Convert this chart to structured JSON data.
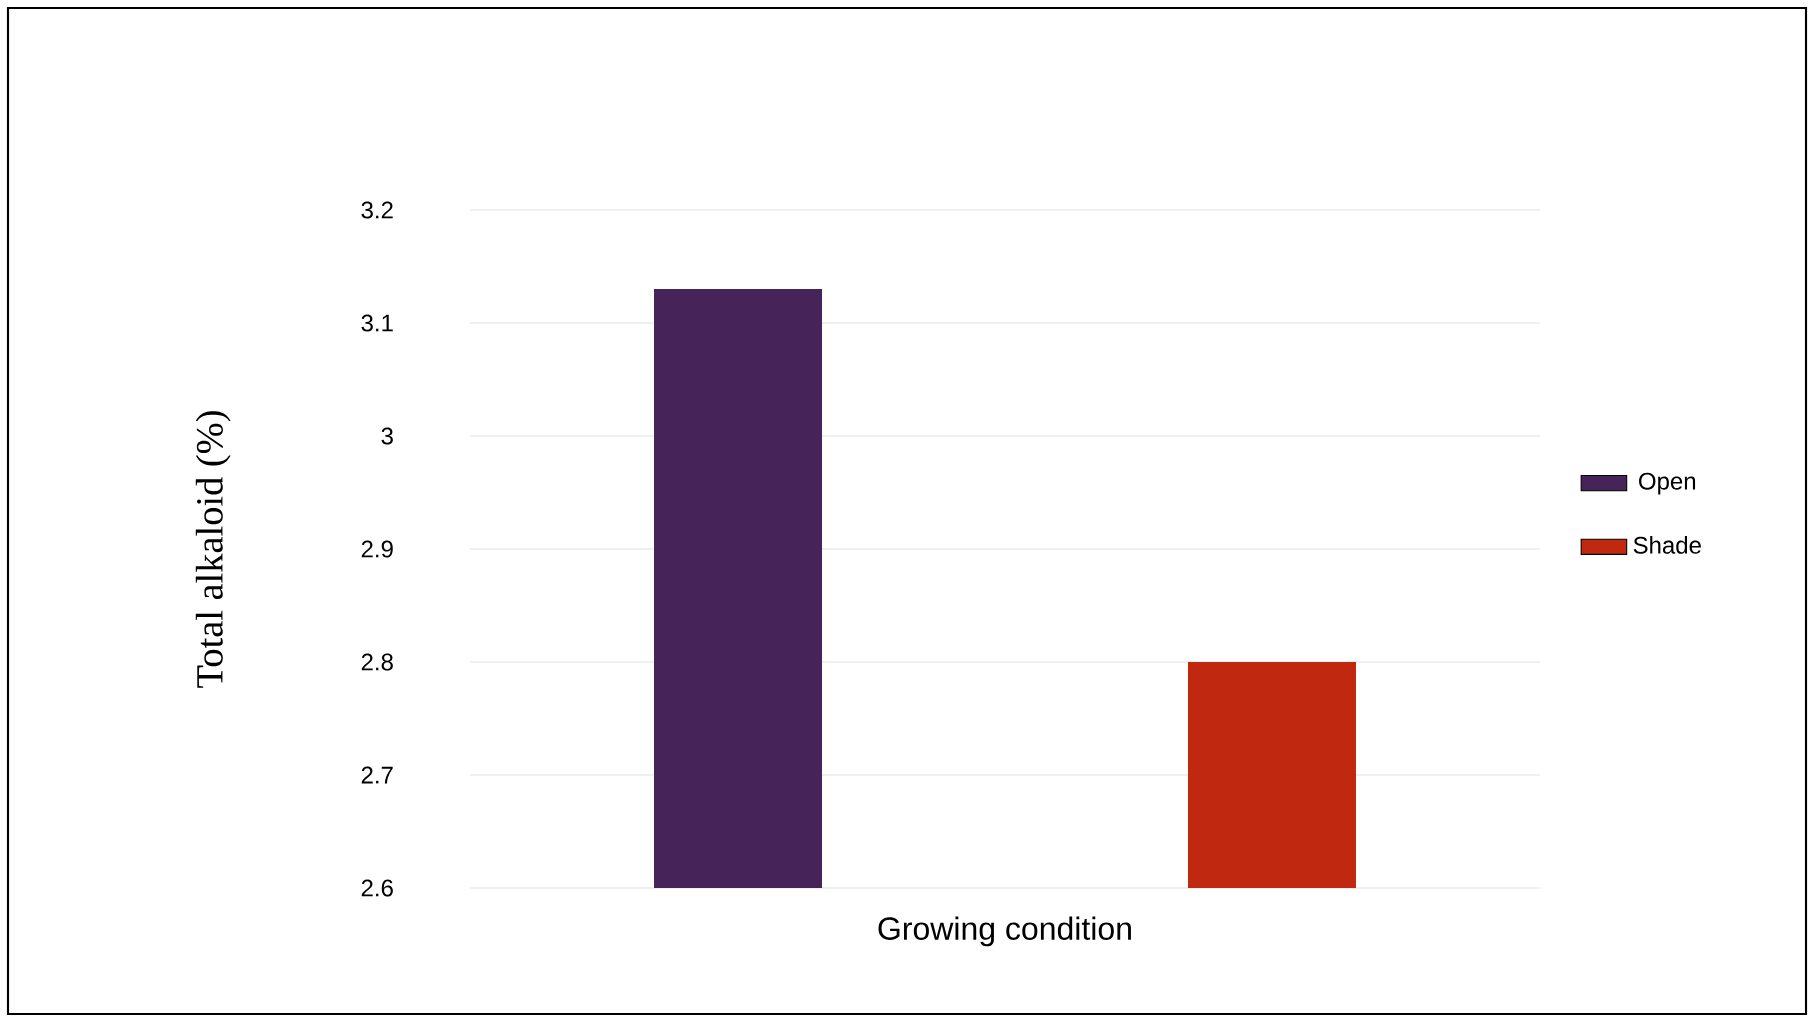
{
  "chart_data": {
    "type": "bar",
    "xlabel": "Growing condition",
    "ylabel": "Total alkaloid (%)",
    "categories": [
      null
    ],
    "series": [
      {
        "name": "Open",
        "color": "#46245a",
        "values": [
          3.13
        ]
      },
      {
        "name": "Shade",
        "color": "#c0290f",
        "values": [
          2.8
        ]
      }
    ],
    "ylim": [
      2.6,
      3.2
    ],
    "yticks": [
      2.6,
      2.7,
      2.8,
      2.9,
      3,
      3.1,
      3.2
    ],
    "legend": "right",
    "grid": "y"
  }
}
